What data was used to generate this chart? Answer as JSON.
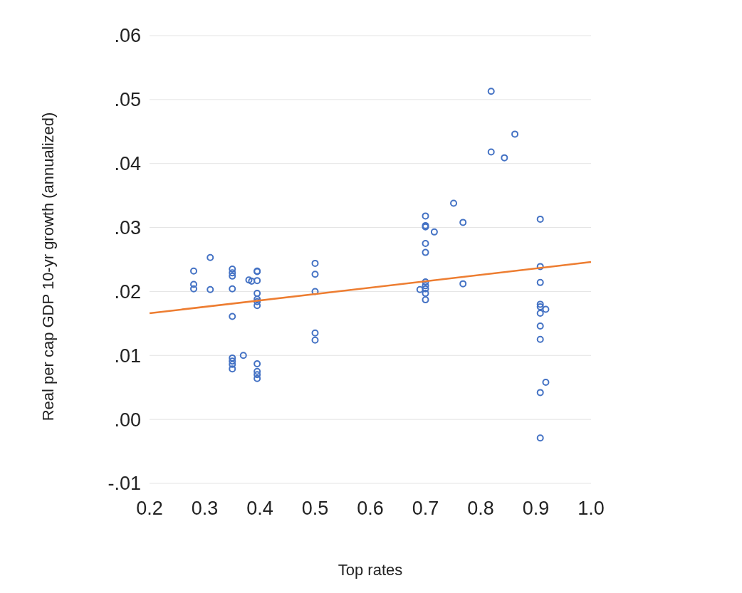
{
  "chart_data": {
    "type": "scatter",
    "xlabel": "Top rates",
    "ylabel": "Real per cap GDP 10-yr growth (annualized)",
    "xlim": [
      0.2,
      1.0
    ],
    "ylim": [
      -0.01,
      0.06
    ],
    "xticks": [
      {
        "value": 0.2,
        "label": "0.2"
      },
      {
        "value": 0.3,
        "label": "0.3"
      },
      {
        "value": 0.4,
        "label": "0.4"
      },
      {
        "value": 0.5,
        "label": "0.5"
      },
      {
        "value": 0.6,
        "label": "0.6"
      },
      {
        "value": 0.7,
        "label": "0.7"
      },
      {
        "value": 0.8,
        "label": "0.8"
      },
      {
        "value": 0.9,
        "label": "0.9"
      },
      {
        "value": 1.0,
        "label": "1.0"
      }
    ],
    "yticks": [
      {
        "value": -0.01,
        "label": "-.01"
      },
      {
        "value": 0,
        "label": ".00"
      },
      {
        "value": 0.01,
        "label": ".01"
      },
      {
        "value": 0.02,
        "label": ".02"
      },
      {
        "value": 0.03,
        "label": ".03"
      },
      {
        "value": 0.04,
        "label": ".04"
      },
      {
        "value": 0.05,
        "label": ".05"
      },
      {
        "value": 0.06,
        "label": ".06"
      }
    ],
    "grid": "y",
    "series": [
      {
        "marker": "circle",
        "color": "#4472c4",
        "x": [
          0.28,
          0.28,
          0.28,
          0.31,
          0.31,
          0.35,
          0.35,
          0.35,
          0.35,
          0.35,
          0.35,
          0.35,
          0.35,
          0.35,
          0.37,
          0.38,
          0.385,
          0.395,
          0.395,
          0.395,
          0.395,
          0.395,
          0.395,
          0.395,
          0.395,
          0.395,
          0.395,
          0.395,
          0.5,
          0.5,
          0.5,
          0.5,
          0.5,
          0.69,
          0.7,
          0.7,
          0.7,
          0.7,
          0.7,
          0.7,
          0.7,
          0.7,
          0.7,
          0.7,
          0.716,
          0.751,
          0.768,
          0.768,
          0.819,
          0.819,
          0.843,
          0.862,
          0.908,
          0.908,
          0.908,
          0.908,
          0.908,
          0.908,
          0.908,
          0.908,
          0.908,
          0.908,
          0.918,
          0.918
        ],
        "values": [
          0.0232,
          0.0211,
          0.0204,
          0.0253,
          0.0203,
          0.0235,
          0.0229,
          0.0224,
          0.0204,
          0.0161,
          0.0096,
          0.0091,
          0.0086,
          0.0079,
          0.01,
          0.0218,
          0.0216,
          0.0232,
          0.0231,
          0.0217,
          0.0197,
          0.0188,
          0.0184,
          0.0178,
          0.0087,
          0.0075,
          0.007,
          0.0064,
          0.0244,
          0.0227,
          0.02,
          0.0135,
          0.0124,
          0.0203,
          0.0318,
          0.0303,
          0.0301,
          0.0275,
          0.0261,
          0.0215,
          0.0209,
          0.0204,
          0.0197,
          0.0187,
          0.0293,
          0.0338,
          0.0308,
          0.0212,
          0.0513,
          0.0418,
          0.0409,
          0.0446,
          0.0313,
          0.0239,
          0.0214,
          0.018,
          0.0176,
          0.0166,
          0.0146,
          0.0125,
          0.0042,
          -0.0029,
          0.0172,
          0.0058
        ]
      },
      {
        "type": "line",
        "color": "#ed7d31",
        "x": [
          0.2,
          1.0
        ],
        "values": [
          0.0166,
          0.0246
        ]
      }
    ]
  }
}
